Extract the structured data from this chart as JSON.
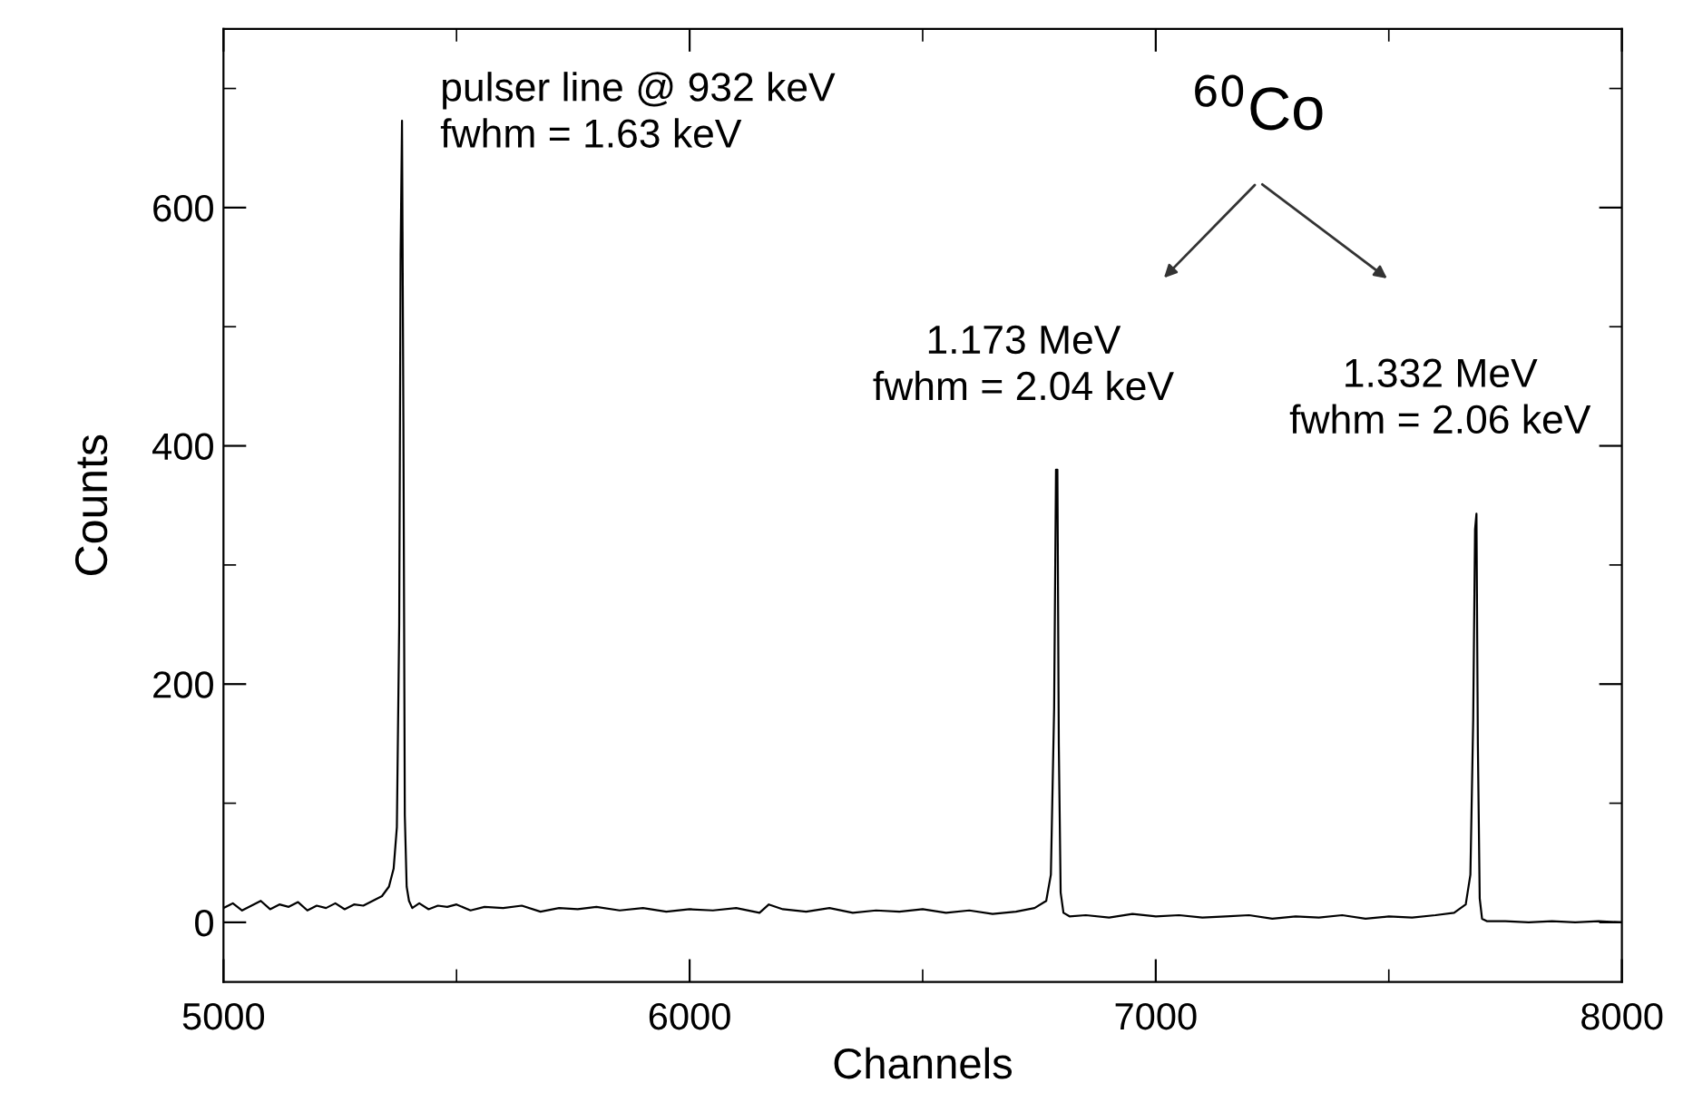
{
  "chart_data": {
    "type": "line",
    "xlabel": "Channels",
    "ylabel": "Counts",
    "xlim": [
      5000,
      8000
    ],
    "ylim": [
      -50,
      750
    ],
    "xticks": [
      5000,
      {
        "value": 5500,
        "label": null
      },
      6000,
      {
        "value": 6500,
        "label": null
      },
      7000,
      {
        "value": 7500,
        "label": null
      },
      8000
    ],
    "yticks": [
      0,
      {
        "value": 100,
        "label": null
      },
      200,
      {
        "value": 300,
        "label": null
      },
      400,
      {
        "value": 500,
        "label": null
      },
      600,
      {
        "value": 700,
        "label": null
      }
    ],
    "grid": false,
    "legend": false,
    "marker": "none",
    "line_style": "solid",
    "series": [
      {
        "color": "#000000",
        "x": [
          5000,
          5020,
          5040,
          5060,
          5080,
          5100,
          5120,
          5140,
          5160,
          5180,
          5200,
          5220,
          5240,
          5260,
          5280,
          5300,
          5320,
          5340,
          5355,
          5365,
          5372,
          5377,
          5380,
          5383,
          5386,
          5389,
          5393,
          5398,
          5405,
          5420,
          5440,
          5460,
          5480,
          5500,
          5530,
          5560,
          5600,
          5640,
          5680,
          5720,
          5760,
          5800,
          5850,
          5900,
          5950,
          6000,
          6050,
          6100,
          6150,
          6170,
          6200,
          6250,
          6300,
          6350,
          6400,
          6450,
          6500,
          6550,
          6600,
          6650,
          6700,
          6740,
          6765,
          6775,
          6782,
          6786,
          6789,
          6792,
          6796,
          6802,
          6815,
          6850,
          6900,
          6950,
          7000,
          7050,
          7100,
          7150,
          7200,
          7250,
          7300,
          7350,
          7400,
          7450,
          7500,
          7550,
          7600,
          7640,
          7665,
          7675,
          7681,
          7685,
          7688,
          7691,
          7695,
          7700,
          7710,
          7750,
          7800,
          7850,
          7900,
          7950,
          8000
        ],
        "values": [
          12,
          16,
          10,
          14,
          18,
          11,
          15,
          13,
          17,
          10,
          14,
          12,
          16,
          11,
          15,
          14,
          18,
          22,
          30,
          45,
          80,
          250,
          560,
          673,
          420,
          90,
          30,
          18,
          12,
          16,
          11,
          14,
          13,
          15,
          10,
          13,
          12,
          14,
          9,
          12,
          11,
          13,
          10,
          12,
          9,
          11,
          10,
          12,
          8,
          15,
          11,
          9,
          12,
          8,
          10,
          9,
          11,
          8,
          10,
          7,
          9,
          12,
          18,
          40,
          180,
          380,
          380,
          150,
          25,
          8,
          5,
          6,
          4,
          7,
          5,
          6,
          4,
          5,
          6,
          3,
          5,
          4,
          6,
          3,
          5,
          4,
          6,
          8,
          15,
          40,
          170,
          330,
          343,
          150,
          20,
          3,
          1,
          1,
          0,
          1,
          0,
          1,
          0
        ]
      }
    ],
    "annotations": [
      "pulser line @ 932 keV\nfwhm = 1.63 keV",
      "$^{60}$Co",
      "1.173 MeV\nfwhm = 2.04 keV",
      "1.332 MeV\nfwhm = 2.06 keV"
    ]
  }
}
